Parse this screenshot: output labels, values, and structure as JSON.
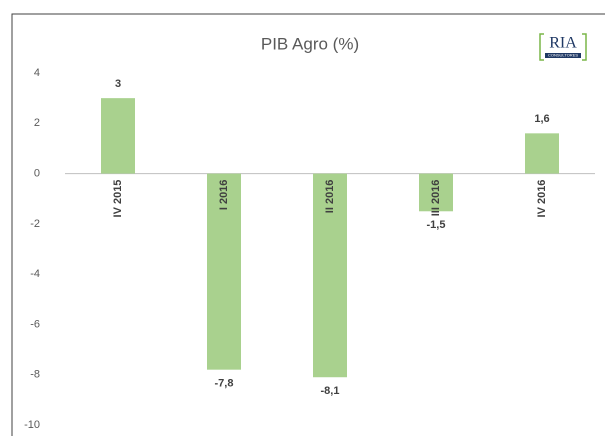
{
  "chart_data": {
    "type": "bar",
    "title": "PIB Agro (%)",
    "logo": {
      "text": "RIA",
      "subtitle": "CONSULTORES"
    },
    "categories": [
      "IV 2015",
      "I 2016",
      "II 2016",
      "III 2016",
      "IV 2016"
    ],
    "values": [
      3,
      -7.8,
      -8.1,
      -1.5,
      1.6
    ],
    "value_labels": [
      "3",
      "-7,8",
      "-8,1",
      "-1,5",
      "1,6"
    ],
    "color": "#a9d18e",
    "ylim": [
      -10,
      4
    ],
    "yticks": [
      4,
      2,
      0,
      -2,
      -4,
      -6,
      -8,
      -10
    ],
    "grid": false
  }
}
